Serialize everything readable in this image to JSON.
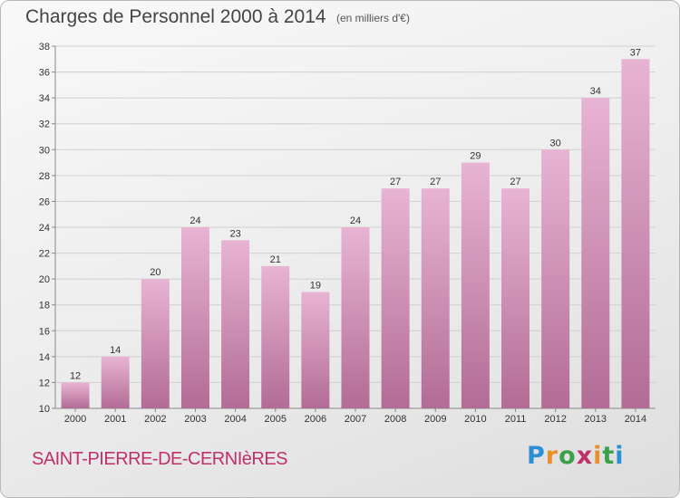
{
  "header": {
    "title": "Charges de Personnel 2000 à 2014",
    "subtitle": "(en milliers d'€)"
  },
  "footer": {
    "town": "SAINT-PIERRE-DE-CERNIèRES",
    "town_color": "#c0306a",
    "logo": "Proxiti",
    "logo_letter_colors": [
      "#2b8fd6",
      "#e9902c",
      "#3aa04a",
      "#c0306a",
      "#e9902c",
      "#3aa04a",
      "#2b8fd6"
    ]
  },
  "colors": {
    "bar_top": "#e8b4d3",
    "bar_bottom": "#b26c95"
  },
  "chart_data": {
    "type": "bar",
    "title": "Charges de Personnel 2000 à 2014",
    "subtitle": "(en milliers d'€)",
    "categories": [
      "2000",
      "2001",
      "2002",
      "2003",
      "2004",
      "2005",
      "2006",
      "2007",
      "2008",
      "2009",
      "2010",
      "2011",
      "2012",
      "2013",
      "2014"
    ],
    "values": [
      12,
      14,
      20,
      24,
      23,
      21,
      19,
      24,
      27,
      27,
      29,
      27,
      30,
      34,
      37
    ],
    "ylim": [
      10,
      38
    ],
    "yticks": [
      10,
      12,
      14,
      16,
      18,
      20,
      22,
      24,
      26,
      28,
      30,
      32,
      34,
      36,
      38
    ],
    "grid": true,
    "xlabel": "",
    "ylabel": ""
  }
}
